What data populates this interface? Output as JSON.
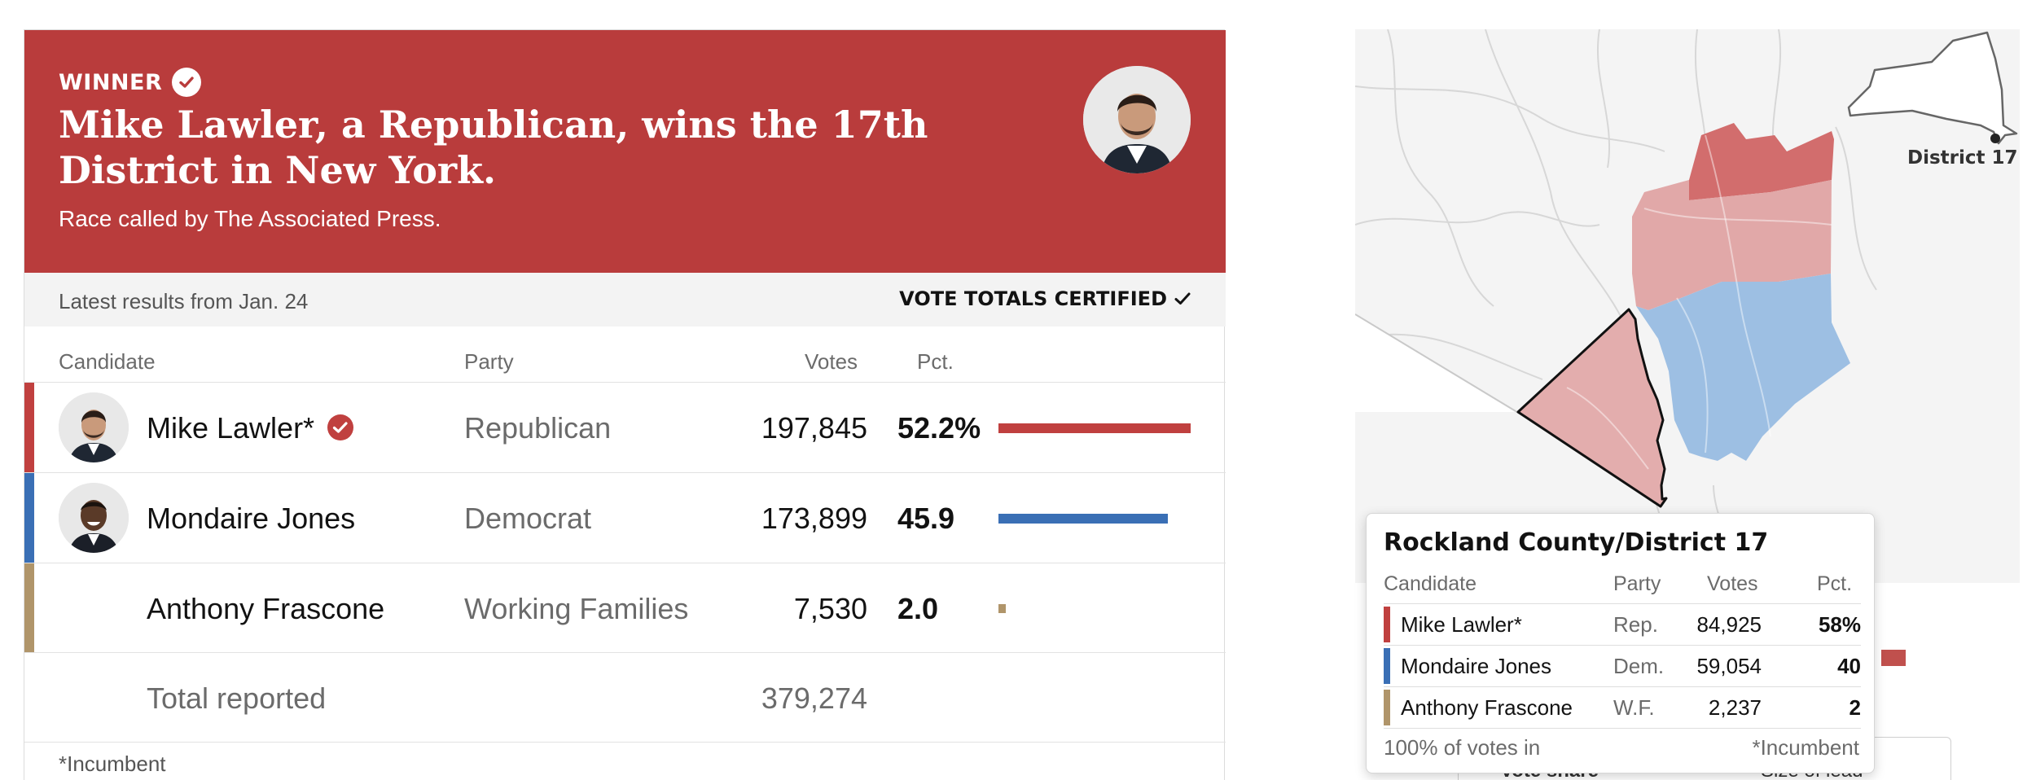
{
  "banner": {
    "tag": "WINNER",
    "headline": "Mike Lawler, a Republican, wins the 17th District in New York.",
    "subline": "Race called by The Associated Press."
  },
  "status": {
    "latest": "Latest results from Jan. 24",
    "certified": "VOTE TOTALS CERTIFIED"
  },
  "table": {
    "headers": {
      "candidate": "Candidate",
      "party": "Party",
      "votes": "Votes",
      "pct": "Pct."
    },
    "rows": [
      {
        "name": "Mike Lawler*",
        "party": "Republican",
        "votes": "197,845",
        "pct": "52.2%",
        "share": 52.2,
        "color": "#c0403f",
        "winner": true
      },
      {
        "name": "Mondaire Jones",
        "party": "Democrat",
        "votes": "173,899",
        "pct": "45.9",
        "share": 45.9,
        "color": "#3a6fb5",
        "winner": false
      },
      {
        "name": "Anthony Frascone",
        "party": "Working Families",
        "votes": "7,530",
        "pct": "2.0",
        "share": 2.0,
        "color": "#b0956a",
        "winner": false
      }
    ],
    "total_label": "Total reported",
    "total_votes": "379,274",
    "incumbent_note": "*Incumbent"
  },
  "map": {
    "district_label": "District 17"
  },
  "behind": {
    "vote_share": "Vote share",
    "size_of_lead": "Size of lead"
  },
  "tooltip": {
    "title": "Rockland County/District 17",
    "headers": {
      "candidate": "Candidate",
      "party": "Party",
      "votes": "Votes",
      "pct": "Pct."
    },
    "rows": [
      {
        "name": "Mike Lawler*",
        "party": "Rep.",
        "votes": "84,925",
        "pct": "58%",
        "color": "#c0403f"
      },
      {
        "name": "Mondaire Jones",
        "party": "Dem.",
        "votes": "59,054",
        "pct": "40",
        "color": "#3a6fb5"
      },
      {
        "name": "Anthony Frascone",
        "party": "W.F.",
        "votes": "2,237",
        "pct": "2",
        "color": "#b0956a"
      }
    ],
    "reporting": "100% of votes in",
    "incumbent": "*Incumbent"
  },
  "colors": {
    "banner": "#b93c3c",
    "republican": "#c0403f",
    "democrat": "#3a6fb5",
    "working_families": "#b0956a"
  }
}
